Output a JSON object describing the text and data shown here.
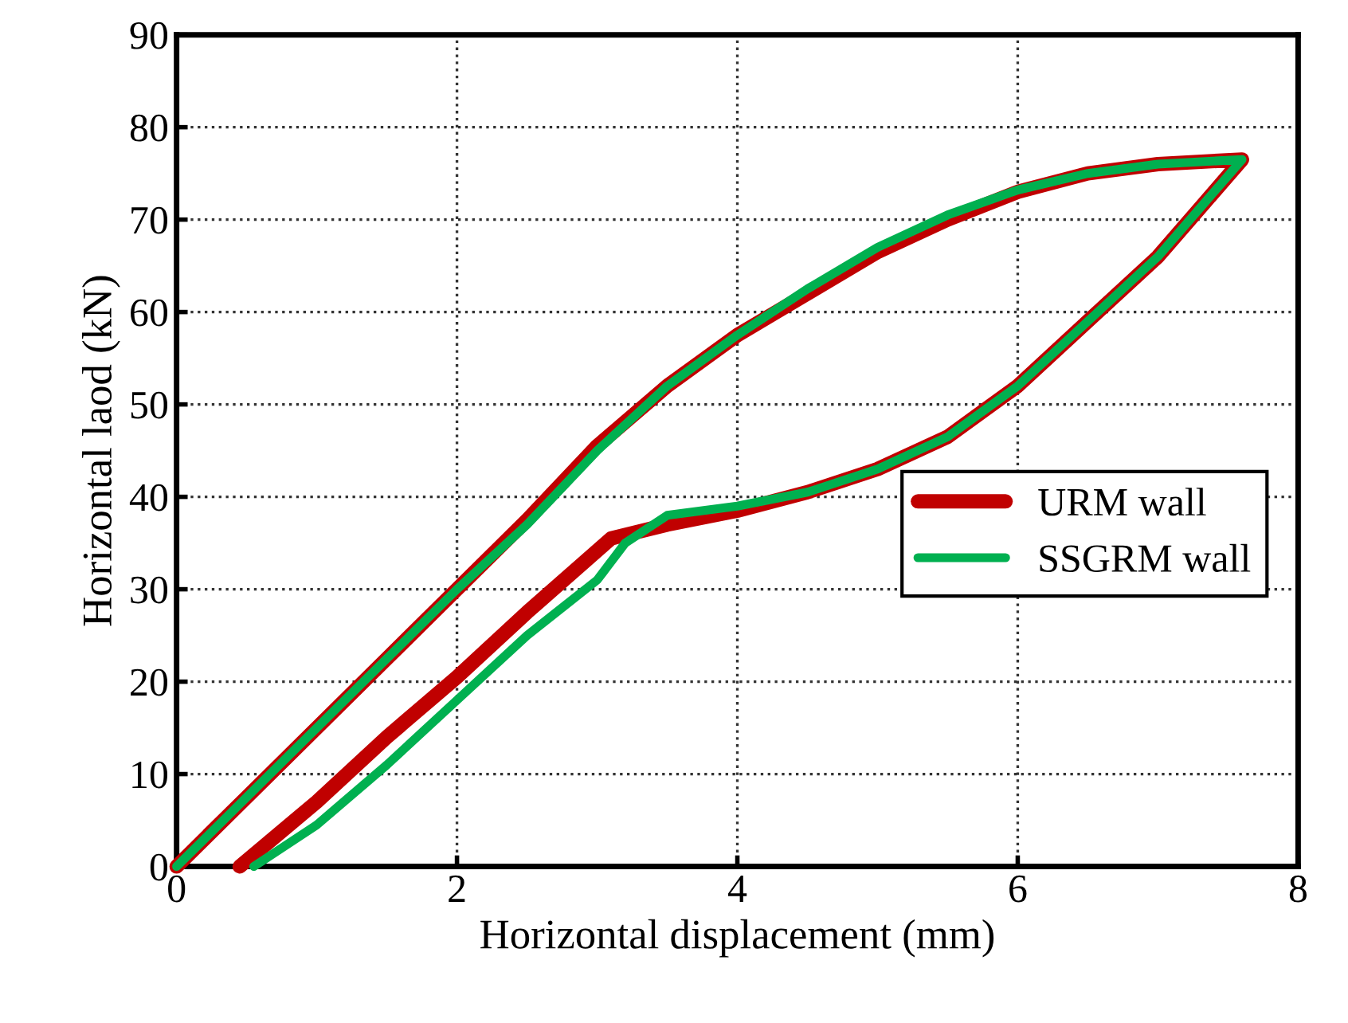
{
  "chart_data": {
    "type": "line",
    "xlabel": "Horizontal displacement (mm)",
    "ylabel": "Horizontal laod (kN)",
    "xlim": [
      0,
      8
    ],
    "xticks": [
      0,
      2,
      4,
      6,
      8
    ],
    "ylim": [
      0,
      90
    ],
    "yticks": [
      0,
      10,
      20,
      30,
      40,
      50,
      60,
      70,
      80,
      90
    ],
    "grid": true,
    "legend": "right",
    "line_style": "solid",
    "marker": "none",
    "series": [
      {
        "name": "URM wall",
        "color": "#c00000",
        "x": [
          0,
          0.5,
          1,
          1.5,
          2,
          2.5,
          3,
          3.5,
          4,
          4.5,
          5,
          5.5,
          6,
          6.5,
          7,
          7.6,
          7,
          6.5,
          6,
          5.5,
          5,
          4.5,
          4,
          3.5,
          3.1,
          2.5,
          2,
          1.5,
          1,
          0.45
        ],
        "values": [
          0,
          7.5,
          15,
          22.5,
          30,
          37.5,
          45.5,
          52,
          57.5,
          62,
          66.5,
          70,
          73,
          75,
          76,
          76.5,
          66,
          59,
          52,
          46.5,
          43,
          40.5,
          38.5,
          37,
          35.5,
          27.5,
          20.5,
          14,
          7,
          0
        ]
      },
      {
        "name": "SSGRM wall",
        "color": "#00b050",
        "x": [
          0,
          0.5,
          1,
          1.5,
          2,
          2.5,
          3,
          3.5,
          4,
          4.5,
          5,
          5.5,
          6,
          6.5,
          7,
          7.6,
          7,
          6.5,
          6,
          5.5,
          5,
          4.5,
          4,
          3.5,
          3.2,
          3,
          2.5,
          2,
          1.5,
          1,
          0.55
        ],
        "values": [
          0,
          7.5,
          15,
          22.5,
          30,
          37,
          45,
          52,
          57.5,
          62.5,
          67,
          70.5,
          73.2,
          75,
          76,
          76.5,
          66,
          59,
          52,
          46.5,
          43,
          40.5,
          39,
          38,
          35,
          31,
          25,
          18,
          11,
          4.5,
          0
        ]
      }
    ]
  }
}
